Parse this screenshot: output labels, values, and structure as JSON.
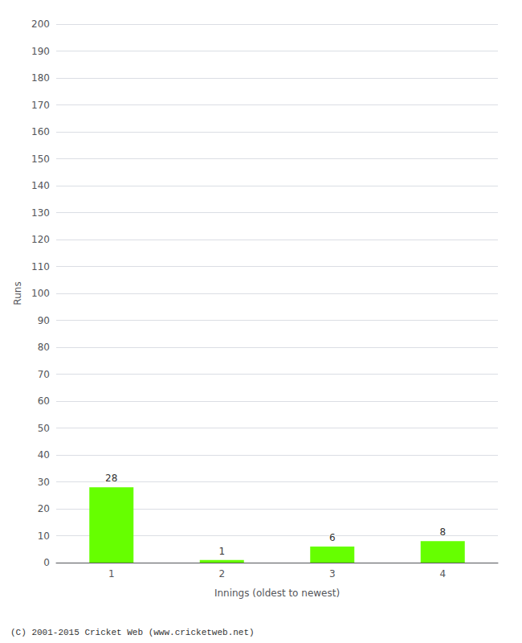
{
  "chart_data": {
    "type": "bar",
    "categories": [
      "1",
      "2",
      "3",
      "4"
    ],
    "values": [
      28,
      1,
      6,
      8
    ],
    "color": "#66ff00",
    "xlabel": "Innings (oldest to newest)",
    "ylabel": "Runs",
    "ylim": [
      0,
      200
    ],
    "yticks": [
      0,
      10,
      20,
      30,
      40,
      50,
      60,
      70,
      80,
      90,
      100,
      110,
      120,
      130,
      140,
      150,
      160,
      170,
      180,
      190,
      200
    ],
    "grid": true,
    "data_labels": true,
    "annotation": "(C) 2001-2015 Cricket Web (www.cricketweb.net)"
  }
}
